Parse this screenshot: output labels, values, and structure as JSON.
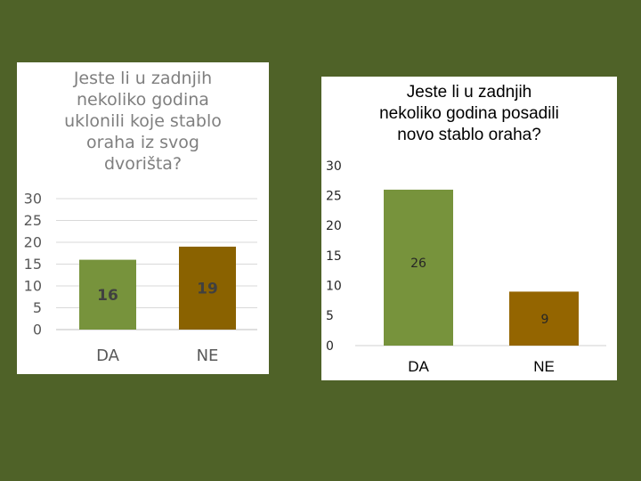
{
  "colors": {
    "background": "#4f6228",
    "panel": "#ffffff",
    "bar_da": "#77933c",
    "bar_ne": "#8a6200",
    "bar_ne_right": "#946500",
    "grid": "#d9d9d9",
    "left_text": "#595959",
    "right_text": "#000000"
  },
  "chart_data": [
    {
      "type": "bar",
      "title": "Jeste li u zadnjih\nnekoliko godina\nuklonili koje stablo\noraha iz svog\ndvorišta?",
      "categories": [
        "DA",
        "NE"
      ],
      "values": [
        16,
        19
      ],
      "yticks": [
        0,
        5,
        10,
        15,
        20,
        25,
        30
      ],
      "ylim": [
        0,
        30
      ],
      "grid": true,
      "legend": "none",
      "data_labels": true
    },
    {
      "type": "bar",
      "title": "Jeste li u zadnjih\nnekoliko godina posadili\nnovo stablo oraha?",
      "categories": [
        "DA",
        "NE"
      ],
      "values": [
        26,
        9
      ],
      "yticks": [
        0,
        5,
        10,
        15,
        20,
        25,
        30
      ],
      "ylim": [
        0,
        30
      ],
      "grid": false,
      "legend": "none",
      "data_labels": true
    }
  ]
}
